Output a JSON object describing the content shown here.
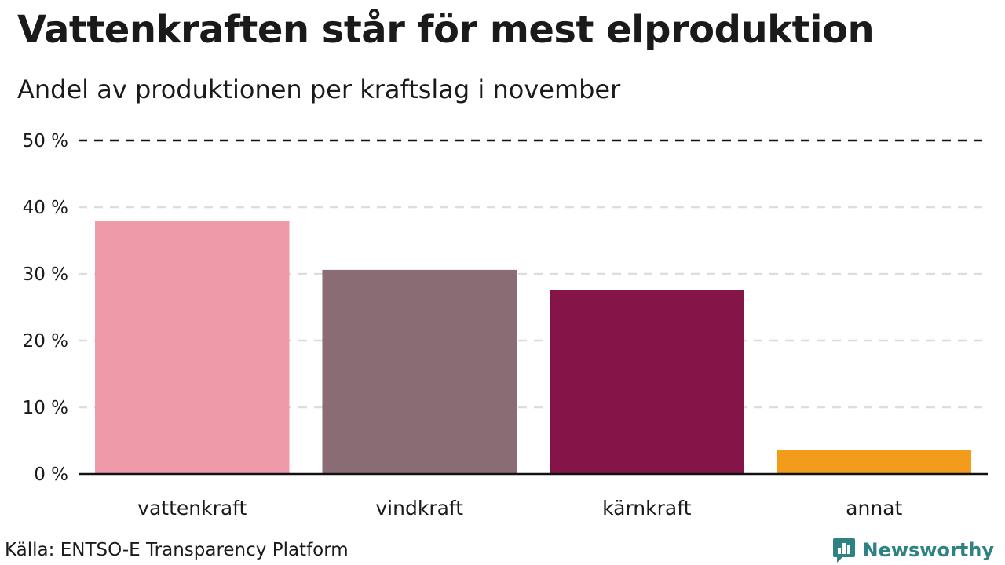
{
  "title": "Vattenkraften står för mest elproduktion",
  "subtitle": "Andel av produktionen per kraftslag i november",
  "source": "Källa: ENTSO-E Transparency Platform",
  "brand": {
    "name": "Newsworthy",
    "color": "#2f8282",
    "icon": "newsworthy-chart-logo-icon"
  },
  "chart_data": {
    "type": "bar",
    "categories": [
      "vattenkraft",
      "vindkraft",
      "kärnkraft",
      "annat"
    ],
    "values": [
      38.0,
      30.6,
      27.6,
      3.6
    ],
    "colors": [
      "#ef9aa8",
      "#8a6c74",
      "#851548",
      "#f39c1c"
    ],
    "y_ticks": [
      0,
      10,
      20,
      30,
      40,
      50
    ],
    "y_tick_labels": [
      "0 %",
      "10 %",
      "20 %",
      "30 %",
      "40 %",
      "50 %"
    ],
    "ylim": [
      0,
      50
    ],
    "grid": true,
    "legend": "none"
  }
}
